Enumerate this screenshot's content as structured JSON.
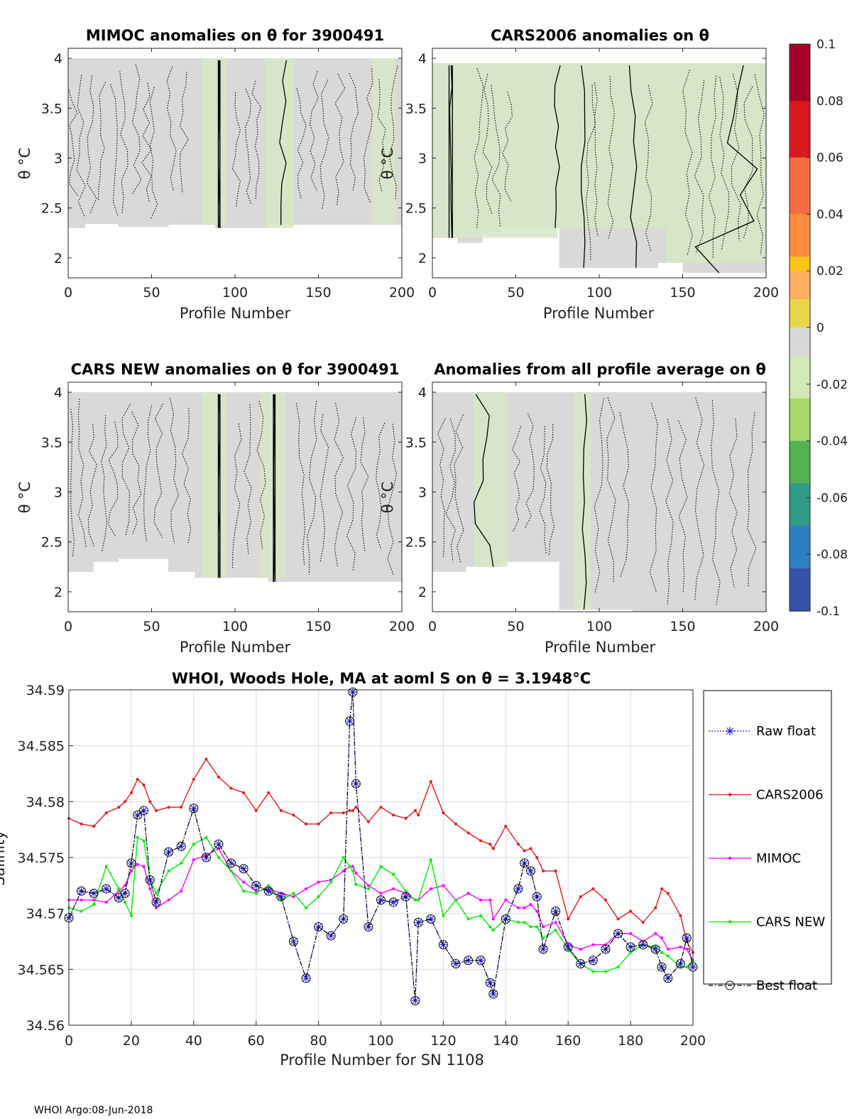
{
  "figure": {
    "float_id": "3900491",
    "footer": "WHOI Argo:08-Jun-2018"
  },
  "colors": {
    "raw_float": "#1f1fd6",
    "cars2006": "#e41a1c",
    "mimoc": "#ff00ff",
    "cars_new": "#00ee00",
    "best_float": "#000000",
    "field_gray": "#d9d9d9",
    "field_green": "#d6e8c4"
  },
  "chart_data": [
    {
      "type": "heatmap",
      "title": "MIMOC anomalies on θ  for 3900491",
      "xlabel": "Profile Number",
      "ylabel": "θ °C",
      "xlim": [
        0,
        200
      ],
      "ylim": [
        1.8,
        4.1
      ],
      "xticks": [
        "0",
        "50",
        "100",
        "150",
        "200"
      ],
      "yticks": [
        "2",
        "2.5",
        "3",
        "3.5",
        "4"
      ],
      "theta_top": 4.0,
      "bottom_steps": [
        [
          0,
          2.3
        ],
        [
          10,
          2.34
        ],
        [
          30,
          2.31
        ],
        [
          60,
          2.33
        ],
        [
          88,
          2.3
        ],
        [
          120,
          2.33
        ],
        [
          200,
          2.33
        ]
      ],
      "green_bands": [
        [
          80,
          95
        ],
        [
          118,
          135
        ],
        [
          182,
          196
        ]
      ],
      "solid_contours": [
        [
          90,
          91
        ],
        [
          126,
          132
        ]
      ],
      "dotted_contour_profiles": [
        3,
        8,
        14,
        20,
        27,
        33,
        41,
        47,
        52,
        62,
        70,
        101,
        107,
        113,
        140,
        147,
        154,
        163,
        171,
        180,
        188,
        195
      ]
    },
    {
      "type": "heatmap",
      "title": "CARS2006 anomalies on θ",
      "xlabel": "Profile Number",
      "ylabel": "θ °C",
      "xlim": [
        0,
        200
      ],
      "ylim": [
        1.8,
        4.1
      ],
      "xticks": [
        "0",
        "50",
        "100",
        "150",
        "200"
      ],
      "yticks": [
        "2",
        "2.5",
        "3",
        "3.5",
        "4"
      ],
      "theta_top": 3.95,
      "bottom_steps": [
        [
          0,
          2.2
        ],
        [
          15,
          2.15
        ],
        [
          30,
          2.25
        ],
        [
          40,
          2.3
        ],
        [
          76,
          1.9
        ],
        [
          120,
          1.9
        ],
        [
          135,
          1.95
        ],
        [
          150,
          1.85
        ],
        [
          200,
          1.87
        ]
      ],
      "green_bands": [
        [
          0,
          75
        ],
        [
          75,
          140
        ],
        [
          140,
          200
        ]
      ],
      "solid_contours": [
        [
          10,
          12
        ],
        [
          72,
          78
        ],
        [
          88,
          92
        ],
        [
          116,
          125
        ],
        [
          150,
          200
        ]
      ],
      "dotted_contour_profiles": [
        28,
        33,
        38,
        45,
        95,
        100,
        107,
        130,
        153,
        160,
        168,
        175,
        182,
        189,
        196
      ]
    },
    {
      "type": "heatmap",
      "title": "CARS NEW anomalies on θ for 3900491",
      "xlabel": "Profile Number",
      "ylabel": "θ °C",
      "xlim": [
        0,
        200
      ],
      "ylim": [
        1.8,
        4.1
      ],
      "xticks": [
        "0",
        "50",
        "100",
        "150",
        "200"
      ],
      "yticks": [
        "2",
        "2.5",
        "3",
        "3.5",
        "4"
      ],
      "theta_top": 4.0,
      "bottom_steps": [
        [
          0,
          2.2
        ],
        [
          15,
          2.3
        ],
        [
          30,
          2.33
        ],
        [
          60,
          2.2
        ],
        [
          76,
          2.14
        ],
        [
          120,
          2.1
        ],
        [
          200,
          2.1
        ]
      ],
      "green_bands": [
        [
          80,
          95
        ],
        [
          115,
          130
        ]
      ],
      "solid_contours": [
        [
          90,
          91
        ],
        [
          123,
          124
        ]
      ],
      "dotted_contour_profiles": [
        4,
        9,
        15,
        21,
        27,
        35,
        41,
        48,
        54,
        64,
        71,
        101,
        108,
        116,
        139,
        146,
        153,
        162,
        170,
        178,
        187,
        194
      ]
    },
    {
      "type": "heatmap",
      "title": "Anomalies from all profile average on θ",
      "xlabel": "Profile Number",
      "ylabel": "θ °C",
      "xlim": [
        0,
        200
      ],
      "ylim": [
        1.8,
        4.1
      ],
      "xticks": [
        "0",
        "50",
        "100",
        "150",
        "200"
      ],
      "yticks": [
        "2",
        "2.5",
        "3",
        "3.5",
        "4"
      ],
      "theta_top": 4.0,
      "bottom_steps": [
        [
          0,
          2.2
        ],
        [
          20,
          2.25
        ],
        [
          40,
          2.3
        ],
        [
          76,
          1.82
        ],
        [
          120,
          1.8
        ],
        [
          200,
          1.82
        ]
      ],
      "green_bands": [
        [
          25,
          45
        ],
        [
          85,
          95
        ]
      ],
      "solid_contours": [
        [
          22,
          40
        ],
        [
          89,
          93
        ]
      ],
      "dotted_contour_profiles": [
        5,
        11,
        16,
        50,
        58,
        66,
        71,
        100,
        107,
        115,
        133,
        142,
        150,
        160,
        170,
        180,
        192
      ]
    },
    {
      "type": "line",
      "title": "WHOI, Woods Hole, MA at aoml S on θ = 3.1948°C",
      "xlabel": "Profile Number for SN 1108",
      "ylabel": "Salinity",
      "xlim": [
        0,
        200
      ],
      "ylim": [
        34.56,
        34.59
      ],
      "xticks": [
        "0",
        "20",
        "40",
        "60",
        "80",
        "100",
        "120",
        "140",
        "160",
        "180",
        "200"
      ],
      "yticks": [
        "34.56",
        "34.565",
        "34.57",
        "34.575",
        "34.58",
        "34.585",
        "34.59"
      ],
      "x_points": [
        0,
        4,
        8,
        12,
        16,
        18,
        20,
        22,
        24,
        26,
        28,
        32,
        36,
        40,
        44,
        48,
        52,
        56,
        60,
        64,
        68,
        72,
        76,
        80,
        84,
        88,
        90,
        91,
        92,
        96,
        100,
        104,
        108,
        111,
        112,
        116,
        120,
        124,
        128,
        132,
        135,
        136,
        140,
        144,
        146,
        148,
        150,
        152,
        156,
        160,
        164,
        168,
        172,
        176,
        180,
        184,
        188,
        190,
        192,
        196,
        198,
        200
      ],
      "series": [
        {
          "name": "Raw float",
          "legend": "Raw float",
          "values": [
            34.5696,
            34.572,
            34.5718,
            34.5722,
            34.5714,
            34.5718,
            34.5745,
            34.5788,
            34.5792,
            34.573,
            34.571,
            34.5755,
            34.576,
            34.5794,
            34.575,
            34.5762,
            34.5745,
            34.574,
            34.5725,
            34.572,
            34.5715,
            34.5675,
            34.5642,
            34.5688,
            34.568,
            34.5695,
            34.5872,
            34.5898,
            34.5816,
            34.5688,
            34.5712,
            34.571,
            34.5715,
            34.5622,
            34.5692,
            34.5695,
            34.5672,
            34.5655,
            34.5658,
            34.5658,
            34.5638,
            34.5628,
            34.5695,
            34.5722,
            34.5745,
            34.5738,
            34.5715,
            34.5668,
            34.5702,
            34.567,
            34.5655,
            34.5658,
            34.5668,
            34.5682,
            34.567,
            34.5672,
            34.5668,
            34.5652,
            34.5642,
            34.5655,
            34.5678,
            34.5652
          ]
        },
        {
          "name": "CARS2006",
          "legend": "CARS2006",
          "values": [
            34.5785,
            34.578,
            34.5778,
            34.579,
            34.5795,
            34.58,
            34.5808,
            34.582,
            34.5815,
            34.58,
            34.5792,
            34.5795,
            34.5795,
            34.582,
            34.5838,
            34.5822,
            34.5812,
            34.5808,
            34.5792,
            34.5808,
            34.5792,
            34.5788,
            34.578,
            34.578,
            34.579,
            34.579,
            34.5792,
            34.5792,
            34.5795,
            34.5782,
            34.5795,
            34.5788,
            34.5785,
            34.5792,
            34.5788,
            34.5818,
            34.579,
            34.578,
            34.5772,
            34.5765,
            34.5762,
            34.5758,
            34.5778,
            34.5762,
            34.5756,
            34.5758,
            34.575,
            34.5738,
            34.5738,
            34.5695,
            34.5715,
            34.5722,
            34.5712,
            34.5695,
            34.5702,
            34.5692,
            34.5705,
            34.5722,
            34.5718,
            34.5698,
            34.5675,
            34.5665
          ]
        },
        {
          "name": "MIMOC",
          "legend": "MIMOC",
          "values": [
            34.5712,
            34.5712,
            34.5712,
            34.571,
            34.572,
            34.5725,
            34.5738,
            34.5744,
            34.5742,
            34.5722,
            34.5705,
            34.5712,
            34.572,
            34.5748,
            34.5752,
            34.5758,
            34.5738,
            34.5728,
            34.572,
            34.5722,
            34.5718,
            34.5715,
            34.5722,
            34.5728,
            34.573,
            34.5738,
            34.5742,
            34.5742,
            34.5736,
            34.5725,
            34.5718,
            34.5722,
            34.5718,
            34.5712,
            34.5712,
            34.5722,
            34.5725,
            34.5712,
            34.5718,
            34.5712,
            34.5712,
            34.5695,
            34.5712,
            34.5705,
            34.5705,
            34.5708,
            34.5702,
            34.5688,
            34.5692,
            34.5672,
            34.5668,
            34.5672,
            34.5672,
            34.5682,
            34.5682,
            34.5675,
            34.5682,
            34.5678,
            34.5668,
            34.567,
            34.5668,
            34.5658
          ]
        },
        {
          "name": "CARS NEW",
          "legend": "CARS NEW",
          "values": [
            34.5705,
            34.5702,
            34.5708,
            34.5742,
            34.5722,
            34.571,
            34.5698,
            34.5768,
            34.5765,
            34.573,
            34.5718,
            34.5738,
            34.5745,
            34.5762,
            34.5768,
            34.575,
            34.5738,
            34.572,
            34.5718,
            34.5725,
            34.5712,
            34.5718,
            34.5705,
            34.5715,
            34.5728,
            34.575,
            34.5742,
            34.5738,
            34.5726,
            34.5722,
            34.5742,
            34.5735,
            34.572,
            34.5712,
            34.5712,
            34.5748,
            34.5698,
            34.5712,
            34.5695,
            34.5698,
            34.5688,
            34.5685,
            34.5695,
            34.5692,
            34.5692,
            34.5688,
            34.5688,
            34.5678,
            34.5685,
            34.5668,
            34.5655,
            34.5648,
            34.5648,
            34.5652,
            34.5665,
            34.5672,
            34.567,
            34.5665,
            34.5662,
            34.5652,
            34.5652,
            34.5658
          ]
        },
        {
          "name": "Best float",
          "legend": "Best float",
          "values": [
            34.5696,
            34.572,
            34.5718,
            34.5722,
            34.5714,
            34.5718,
            34.5745,
            34.5788,
            34.5792,
            34.573,
            34.571,
            34.5755,
            34.576,
            34.5794,
            34.575,
            34.5762,
            34.5745,
            34.574,
            34.5725,
            34.572,
            34.5715,
            34.5675,
            34.5642,
            34.5688,
            34.568,
            34.5695,
            34.5872,
            34.5898,
            34.5816,
            34.5688,
            34.5712,
            34.571,
            34.5715,
            34.5622,
            34.5692,
            34.5695,
            34.5672,
            34.5655,
            34.5658,
            34.5658,
            34.5638,
            34.5628,
            34.5695,
            34.5722,
            34.5745,
            34.5738,
            34.5715,
            34.5668,
            34.5702,
            34.567,
            34.5655,
            34.5658,
            34.5668,
            34.5682,
            34.567,
            34.5672,
            34.5668,
            34.5652,
            34.5642,
            34.5655,
            34.5678,
            34.5652
          ]
        }
      ]
    }
  ],
  "colorbar": {
    "ticks": [
      "0.1",
      "0.08",
      "0.06",
      "0.04",
      "0.02",
      "0",
      "-0.02",
      "-0.04",
      "-0.06",
      "-0.08",
      "-0.1"
    ],
    "range": [
      -0.1,
      0.1
    ]
  }
}
